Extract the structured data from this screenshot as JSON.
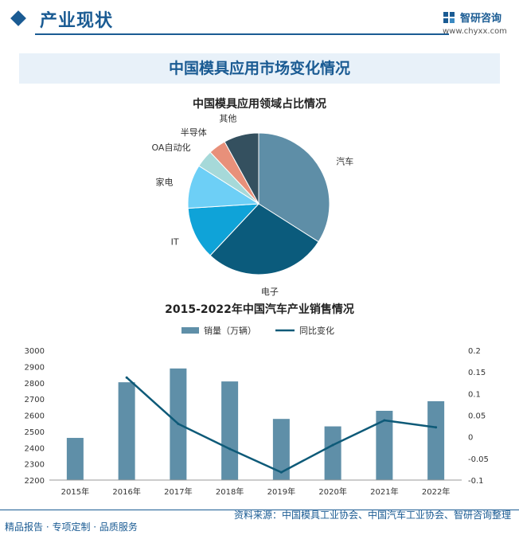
{
  "header": {
    "section_title": "产业现状",
    "logo_name": "智研咨询",
    "logo_url": "www.chyxx.com"
  },
  "banner_title": "中国模具应用市场变化情况",
  "colors": {
    "brand": "#1a5b93",
    "bar": "#5f8fa8",
    "line": "#0e5a78"
  },
  "chart_data": [
    {
      "type": "pie",
      "title": "中国模具应用领域占比情况",
      "slices": [
        {
          "label": "汽车",
          "value": 34,
          "color": "#5e8ea7"
        },
        {
          "label": "电子",
          "value": 28,
          "color": "#0b5b7c"
        },
        {
          "label": "IT",
          "value": 12,
          "color": "#0fa3d8"
        },
        {
          "label": "家电",
          "value": 10,
          "color": "#6dcff6"
        },
        {
          "label": "OA自动化",
          "value": 4,
          "color": "#a6d9d9"
        },
        {
          "label": "半导体",
          "value": 4,
          "color": "#e8907a"
        },
        {
          "label": "其他",
          "value": 8,
          "color": "#34505f"
        }
      ]
    },
    {
      "type": "bar",
      "title": "2015-2022年中国汽车产业销售情况",
      "categories": [
        "2015年",
        "2016年",
        "2017年",
        "2018年",
        "2019年",
        "2020年",
        "2021年",
        "2022年"
      ],
      "series": [
        {
          "name": "销量（万辆）",
          "type": "bar",
          "axis": "left",
          "values": [
            2460,
            2803,
            2888,
            2808,
            2577,
            2531,
            2627,
            2686
          ]
        },
        {
          "name": "同比变化",
          "type": "line",
          "axis": "right",
          "values": [
            null,
            0.137,
            0.03,
            -0.028,
            -0.082,
            -0.019,
            0.038,
            0.022
          ]
        }
      ],
      "ylim_left": [
        2200,
        3000
      ],
      "yticks_left": [
        "2200",
        "2300",
        "2400",
        "2500",
        "2600",
        "2700",
        "2800",
        "2900",
        "3000"
      ],
      "ylim_right": [
        -0.1,
        0.2
      ],
      "yticks_right": [
        "-0.1",
        "-0.05",
        "0",
        "0.05",
        "0.1",
        "0.15",
        "0.2"
      ],
      "legend_position": "top"
    }
  ],
  "footer": {
    "left": "精品报告 · 专项定制 · 品质服务",
    "right": "资料来源：中国模具工业协会、中国汽车工业协会、智研咨询整理"
  }
}
